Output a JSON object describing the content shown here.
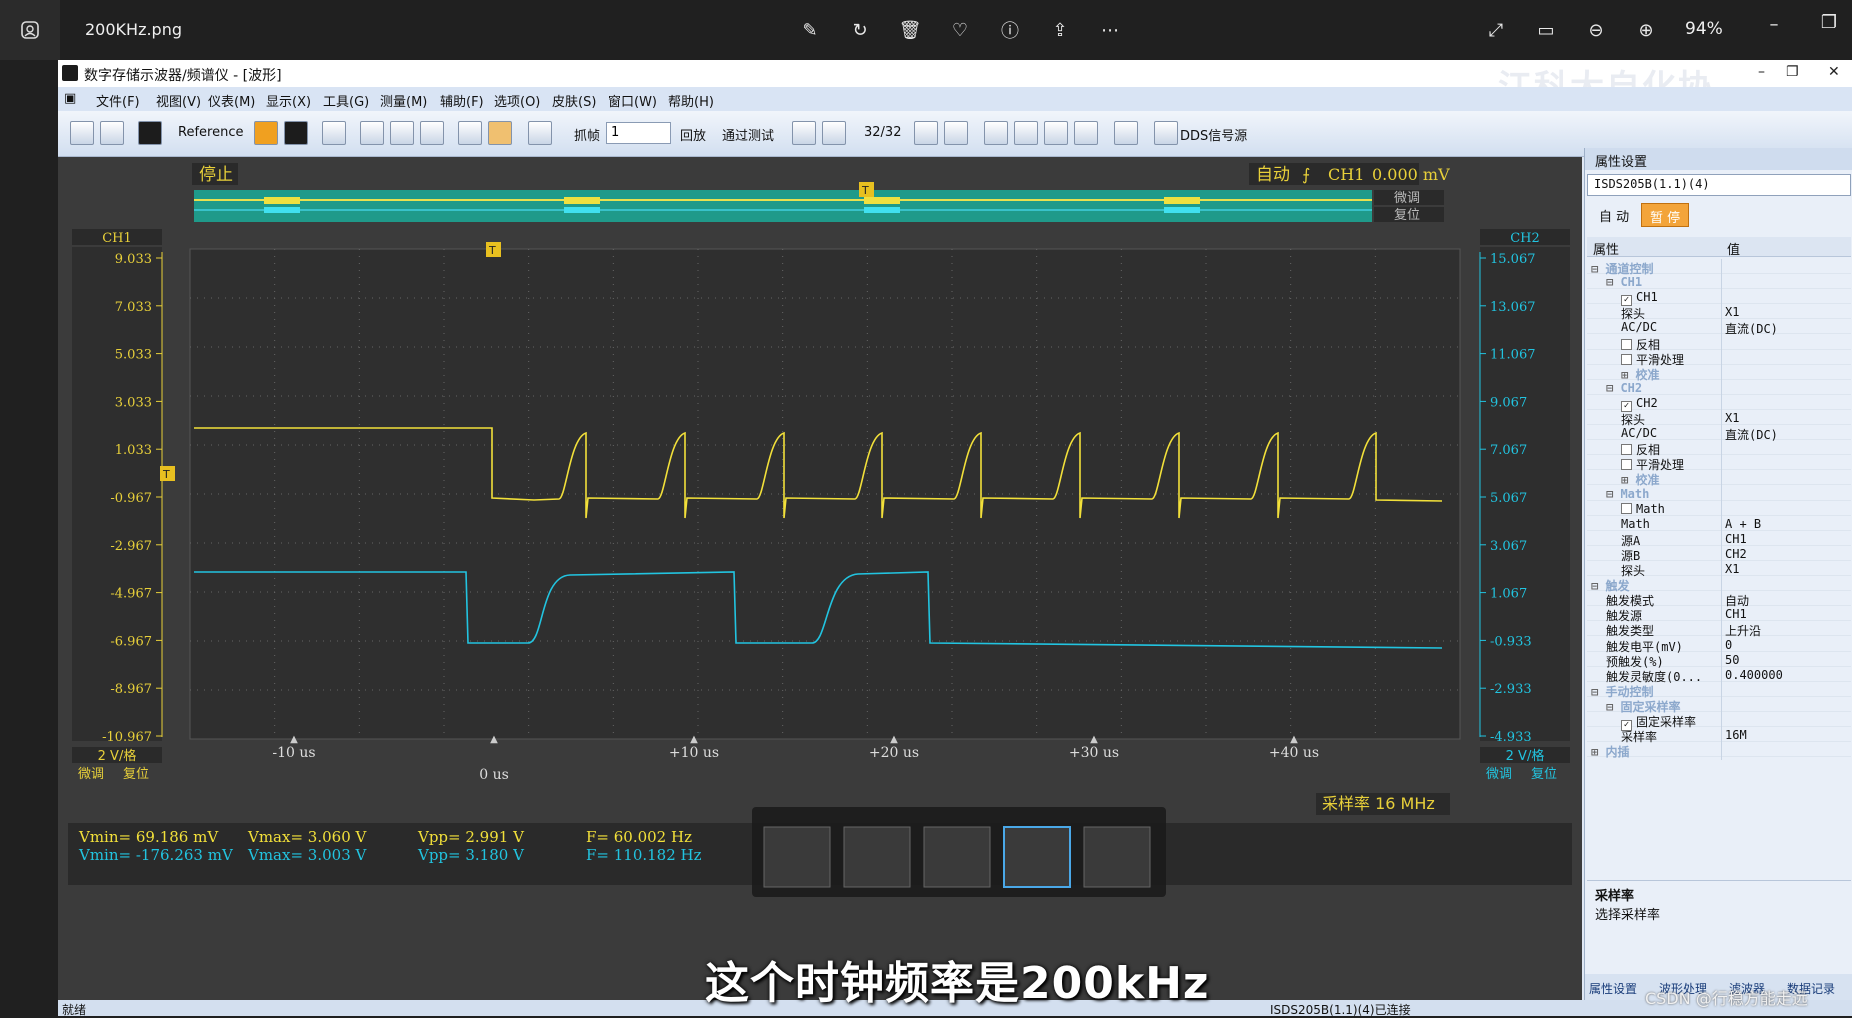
{
  "viewer": {
    "filename": "200KHz.png",
    "zoom": "94%"
  },
  "app": {
    "title": "数字存储示波器/频谱仪 - [波形]",
    "watermark": "江科大自化协"
  },
  "menu": [
    "文件(F)",
    "视图(V)",
    "仪表(M)",
    "显示(X)",
    "工具(G)",
    "测量(M)",
    "辅助(F)",
    "选项(O)",
    "皮肤(S)",
    "窗口(W)",
    "帮助(H)"
  ],
  "toolbar": {
    "reference": "Reference",
    "grab": "抓帧",
    "frame_value": "1",
    "playback": "回放",
    "pass_test": "通过测试",
    "frame_counter": "32/32",
    "dds": "DDS信号源"
  },
  "scope": {
    "status": "停止",
    "trigger_mode": "自动",
    "trigger_channel": "CH1",
    "trigger_level": "0.000 mV",
    "fine_tune": "微调",
    "reset": "复位",
    "ch1_label": "CH1",
    "ch2_label": "CH2",
    "ch1_scale": "2 V/格",
    "ch2_scale": "2 V/格",
    "ch1_ticks": [
      "9.033",
      "7.033",
      "5.033",
      "3.033",
      "1.033",
      "-0.967",
      "-2.967",
      "-4.967",
      "-6.967",
      "-8.967",
      "-10.967"
    ],
    "ch2_ticks": [
      "15.067",
      "13.067",
      "11.067",
      "9.067",
      "7.067",
      "5.067",
      "3.067",
      "1.067",
      "-0.933",
      "-2.933",
      "-4.933"
    ],
    "time_ticks": [
      "-10 us",
      "+10 us",
      "+20 us",
      "+30 us",
      "+40 us"
    ],
    "time_zero": "0 us",
    "sample_rate": "采样率 16 MHz",
    "trigger_marker": "T"
  },
  "measurements": {
    "ch1": {
      "vmin": "Vmin= 69.186 mV",
      "vmax": "Vmax= 3.060 V",
      "vpp": "Vpp= 2.991 V",
      "freq": "F= 60.002 Hz"
    },
    "ch2": {
      "vmin": "Vmin= -176.263 mV",
      "vmax": "Vmax= 3.003 V",
      "vpp": "Vpp= 3.180 V",
      "freq": "F= 110.182 Hz"
    }
  },
  "panel": {
    "title": "属性设置",
    "device": "ISDS205B(1.1)(4)",
    "btn_auto": "自 动",
    "btn_pause": "暂 停",
    "col_prop": "属性",
    "col_val": "值",
    "rows": [
      {
        "k": "通道控制",
        "v": "",
        "cat": true,
        "ind": 0,
        "exp": "⊟"
      },
      {
        "k": "CH1",
        "v": "",
        "cat": true,
        "ind": 1,
        "exp": "⊟"
      },
      {
        "k": "CH1",
        "v": "",
        "chk": "✓",
        "ind": 2
      },
      {
        "k": "探头",
        "v": "X1",
        "ind": 2
      },
      {
        "k": "AC/DC",
        "v": "直流(DC)",
        "ind": 2
      },
      {
        "k": "反相",
        "v": "",
        "chk": "",
        "ind": 2
      },
      {
        "k": "平滑处理",
        "v": "",
        "chk": "",
        "ind": 2
      },
      {
        "k": "校准",
        "v": "",
        "cat": true,
        "ind": 2,
        "exp": "⊞"
      },
      {
        "k": "CH2",
        "v": "",
        "cat": true,
        "ind": 1,
        "exp": "⊟"
      },
      {
        "k": "CH2",
        "v": "",
        "chk": "✓",
        "ind": 2
      },
      {
        "k": "探头",
        "v": "X1",
        "ind": 2
      },
      {
        "k": "AC/DC",
        "v": "直流(DC)",
        "ind": 2
      },
      {
        "k": "反相",
        "v": "",
        "chk": "",
        "ind": 2
      },
      {
        "k": "平滑处理",
        "v": "",
        "chk": "",
        "ind": 2
      },
      {
        "k": "校准",
        "v": "",
        "cat": true,
        "ind": 2,
        "exp": "⊞"
      },
      {
        "k": "Math",
        "v": "",
        "cat": true,
        "ind": 1,
        "exp": "⊟"
      },
      {
        "k": "Math",
        "v": "",
        "chk": "",
        "ind": 2
      },
      {
        "k": "Math",
        "v": "A + B",
        "ind": 2
      },
      {
        "k": "源A",
        "v": "CH1",
        "ind": 2
      },
      {
        "k": "源B",
        "v": "CH2",
        "ind": 2
      },
      {
        "k": "探头",
        "v": "X1",
        "ind": 2
      },
      {
        "k": "触发",
        "v": "",
        "cat": true,
        "ind": 0,
        "exp": "⊟"
      },
      {
        "k": "触发模式",
        "v": "自动",
        "ind": 1
      },
      {
        "k": "触发源",
        "v": "CH1",
        "ind": 1
      },
      {
        "k": "触发类型",
        "v": "上升沿",
        "ind": 1
      },
      {
        "k": "触发电平(mV)",
        "v": "0",
        "ind": 1
      },
      {
        "k": "预触发(%)",
        "v": "50",
        "ind": 1
      },
      {
        "k": "触发灵敏度(0...",
        "v": "0.400000",
        "ind": 1
      },
      {
        "k": "手动控制",
        "v": "",
        "cat": true,
        "ind": 0,
        "exp": "⊟"
      },
      {
        "k": "固定采样率",
        "v": "",
        "cat": true,
        "ind": 1,
        "exp": "⊟"
      },
      {
        "k": "固定采样率",
        "v": "",
        "chk": "✓",
        "ind": 2
      },
      {
        "k": "采样率",
        "v": "16M",
        "ind": 2
      },
      {
        "k": "内插",
        "v": "",
        "cat": true,
        "ind": 0,
        "exp": "⊞"
      }
    ],
    "desc_title": "采样率",
    "desc_text": "选择采样率",
    "tabs": [
      "属性设置",
      "波形处理",
      "滤波器",
      "数据记录"
    ]
  },
  "status": {
    "left": "就绪",
    "right": "ISDS205B(1.1)(4)已连接"
  },
  "caption": "这个时钟频率是200kHz",
  "credit": "CSDN @行稳方能走远",
  "colors": {
    "ch1": "#f2e03a",
    "ch2": "#22c4e0",
    "bg": "#3b3b3b"
  }
}
